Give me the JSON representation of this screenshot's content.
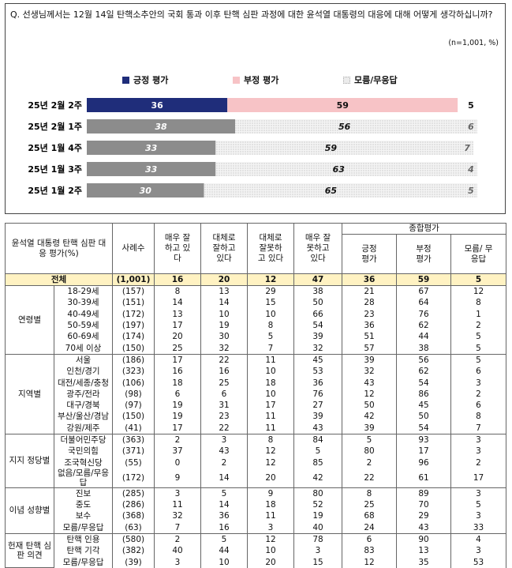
{
  "question": "Q. 선생님께서는 12월 14일 탄핵소추안의 국회 통과 이후 탄핵 심판 과정에 대한 윤석열 대통령의 대응에 대해 어떻게 생각하십니까?",
  "unit_note": "(n=1,001, %)",
  "legend": [
    {
      "label": "긍정 평가",
      "color": "#1f2d7a"
    },
    {
      "label": "부정 평가",
      "color": "#f7c3c6"
    },
    {
      "label": "모름/무응답",
      "color": "#e6e6e6"
    }
  ],
  "chart_data": {
    "type": "bar",
    "stacked": true,
    "orientation": "horizontal",
    "categories": [
      "25년 2월 2주",
      "25년 2월 1주",
      "25년 1월 4주",
      "25년 1월 3주",
      "25년 1월 2주"
    ],
    "series": [
      {
        "name": "긍정 평가",
        "values": [
          36,
          38,
          33,
          33,
          30
        ]
      },
      {
        "name": "부정 평가",
        "values": [
          59,
          56,
          59,
          63,
          65
        ]
      },
      {
        "name": "모름/무응답",
        "values": [
          5,
          6,
          7,
          4,
          5
        ]
      }
    ],
    "xlim": [
      0,
      100
    ]
  },
  "table": {
    "header": {
      "col1": "윤석열 대통령 탄핵 심판 대응 평가(%)",
      "col2": "사례수",
      "c3": "매우 잘하고 있다",
      "c4": "대체로 잘하고 있다",
      "c5": "대체로 잘못하고 있다",
      "c6": "매우 잘못하고 있다",
      "summary": "종합평가",
      "s1": "긍정 평가",
      "s2": "부정 평가",
      "s3": "모름/ 무응답"
    },
    "total": {
      "label": "전체",
      "n": "(1,001)",
      "vals": [
        "16",
        "20",
        "12",
        "47",
        "36",
        "59",
        "5"
      ]
    },
    "groups": [
      {
        "name": "연령별",
        "rows": [
          {
            "label": "18-29세",
            "n": "(157)",
            "vals": [
              "8",
              "13",
              "29",
              "38",
              "21",
              "67",
              "12"
            ]
          },
          {
            "label": "30-39세",
            "n": "(151)",
            "vals": [
              "14",
              "14",
              "15",
              "50",
              "28",
              "64",
              "8"
            ]
          },
          {
            "label": "40-49세",
            "n": "(172)",
            "vals": [
              "13",
              "10",
              "10",
              "66",
              "23",
              "76",
              "1"
            ]
          },
          {
            "label": "50-59세",
            "n": "(197)",
            "vals": [
              "17",
              "19",
              "8",
              "54",
              "36",
              "62",
              "2"
            ]
          },
          {
            "label": "60-69세",
            "n": "(174)",
            "vals": [
              "20",
              "30",
              "5",
              "39",
              "51",
              "44",
              "5"
            ]
          },
          {
            "label": "70세 이상",
            "n": "(150)",
            "vals": [
              "25",
              "32",
              "7",
              "32",
              "57",
              "38",
              "5"
            ]
          }
        ]
      },
      {
        "name": "지역별",
        "rows": [
          {
            "label": "서울",
            "n": "(186)",
            "vals": [
              "17",
              "22",
              "11",
              "45",
              "39",
              "56",
              "5"
            ]
          },
          {
            "label": "인천/경기",
            "n": "(323)",
            "vals": [
              "16",
              "16",
              "10",
              "53",
              "32",
              "62",
              "6"
            ]
          },
          {
            "label": "대전/세종/충청",
            "n": "(106)",
            "vals": [
              "18",
              "25",
              "18",
              "36",
              "43",
              "54",
              "3"
            ]
          },
          {
            "label": "광주/전라",
            "n": "(98)",
            "vals": [
              "6",
              "6",
              "10",
              "76",
              "12",
              "86",
              "2"
            ]
          },
          {
            "label": "대구/경북",
            "n": "(97)",
            "vals": [
              "19",
              "31",
              "17",
              "27",
              "50",
              "45",
              "6"
            ]
          },
          {
            "label": "부산/울산/경남",
            "n": "(150)",
            "vals": [
              "19",
              "23",
              "11",
              "39",
              "42",
              "50",
              "8"
            ]
          },
          {
            "label": "강원/제주",
            "n": "(41)",
            "vals": [
              "17",
              "22",
              "11",
              "43",
              "39",
              "54",
              "7"
            ]
          }
        ]
      },
      {
        "name": "지지 정당별",
        "rows": [
          {
            "label": "더불어민주당",
            "n": "(363)",
            "vals": [
              "2",
              "3",
              "8",
              "84",
              "5",
              "93",
              "3"
            ]
          },
          {
            "label": "국민의힘",
            "n": "(371)",
            "vals": [
              "37",
              "43",
              "12",
              "5",
              "80",
              "17",
              "3"
            ]
          },
          {
            "label": "조국혁신당",
            "n": "(55)",
            "vals": [
              "0",
              "2",
              "12",
              "85",
              "2",
              "96",
              "2"
            ]
          },
          {
            "label": "없음/모름/무응답",
            "n": "(172)",
            "vals": [
              "9",
              "14",
              "20",
              "42",
              "22",
              "61",
              "17"
            ]
          }
        ]
      },
      {
        "name": "이념 성향별",
        "rows": [
          {
            "label": "진보",
            "n": "(285)",
            "vals": [
              "3",
              "5",
              "9",
              "80",
              "8",
              "89",
              "3"
            ]
          },
          {
            "label": "중도",
            "n": "(286)",
            "vals": [
              "11",
              "14",
              "18",
              "52",
              "25",
              "70",
              "5"
            ]
          },
          {
            "label": "보수",
            "n": "(368)",
            "vals": [
              "32",
              "36",
              "11",
              "19",
              "68",
              "29",
              "3"
            ]
          },
          {
            "label": "모름/무응답",
            "n": "(63)",
            "vals": [
              "7",
              "16",
              "3",
              "40",
              "24",
              "43",
              "33"
            ]
          }
        ]
      },
      {
        "name": "헌재 탄핵 심판 의견",
        "rows": [
          {
            "label": "탄핵 인용",
            "n": "(580)",
            "vals": [
              "2",
              "5",
              "12",
              "78",
              "6",
              "90",
              "4"
            ]
          },
          {
            "label": "탄핵 기각",
            "n": "(382)",
            "vals": [
              "40",
              "44",
              "10",
              "3",
              "83",
              "13",
              "3"
            ]
          },
          {
            "label": "모름/무응답",
            "n": "(39)",
            "vals": [
              "3",
              "10",
              "20",
              "15",
              "12",
              "35",
              "53"
            ]
          }
        ]
      }
    ]
  }
}
